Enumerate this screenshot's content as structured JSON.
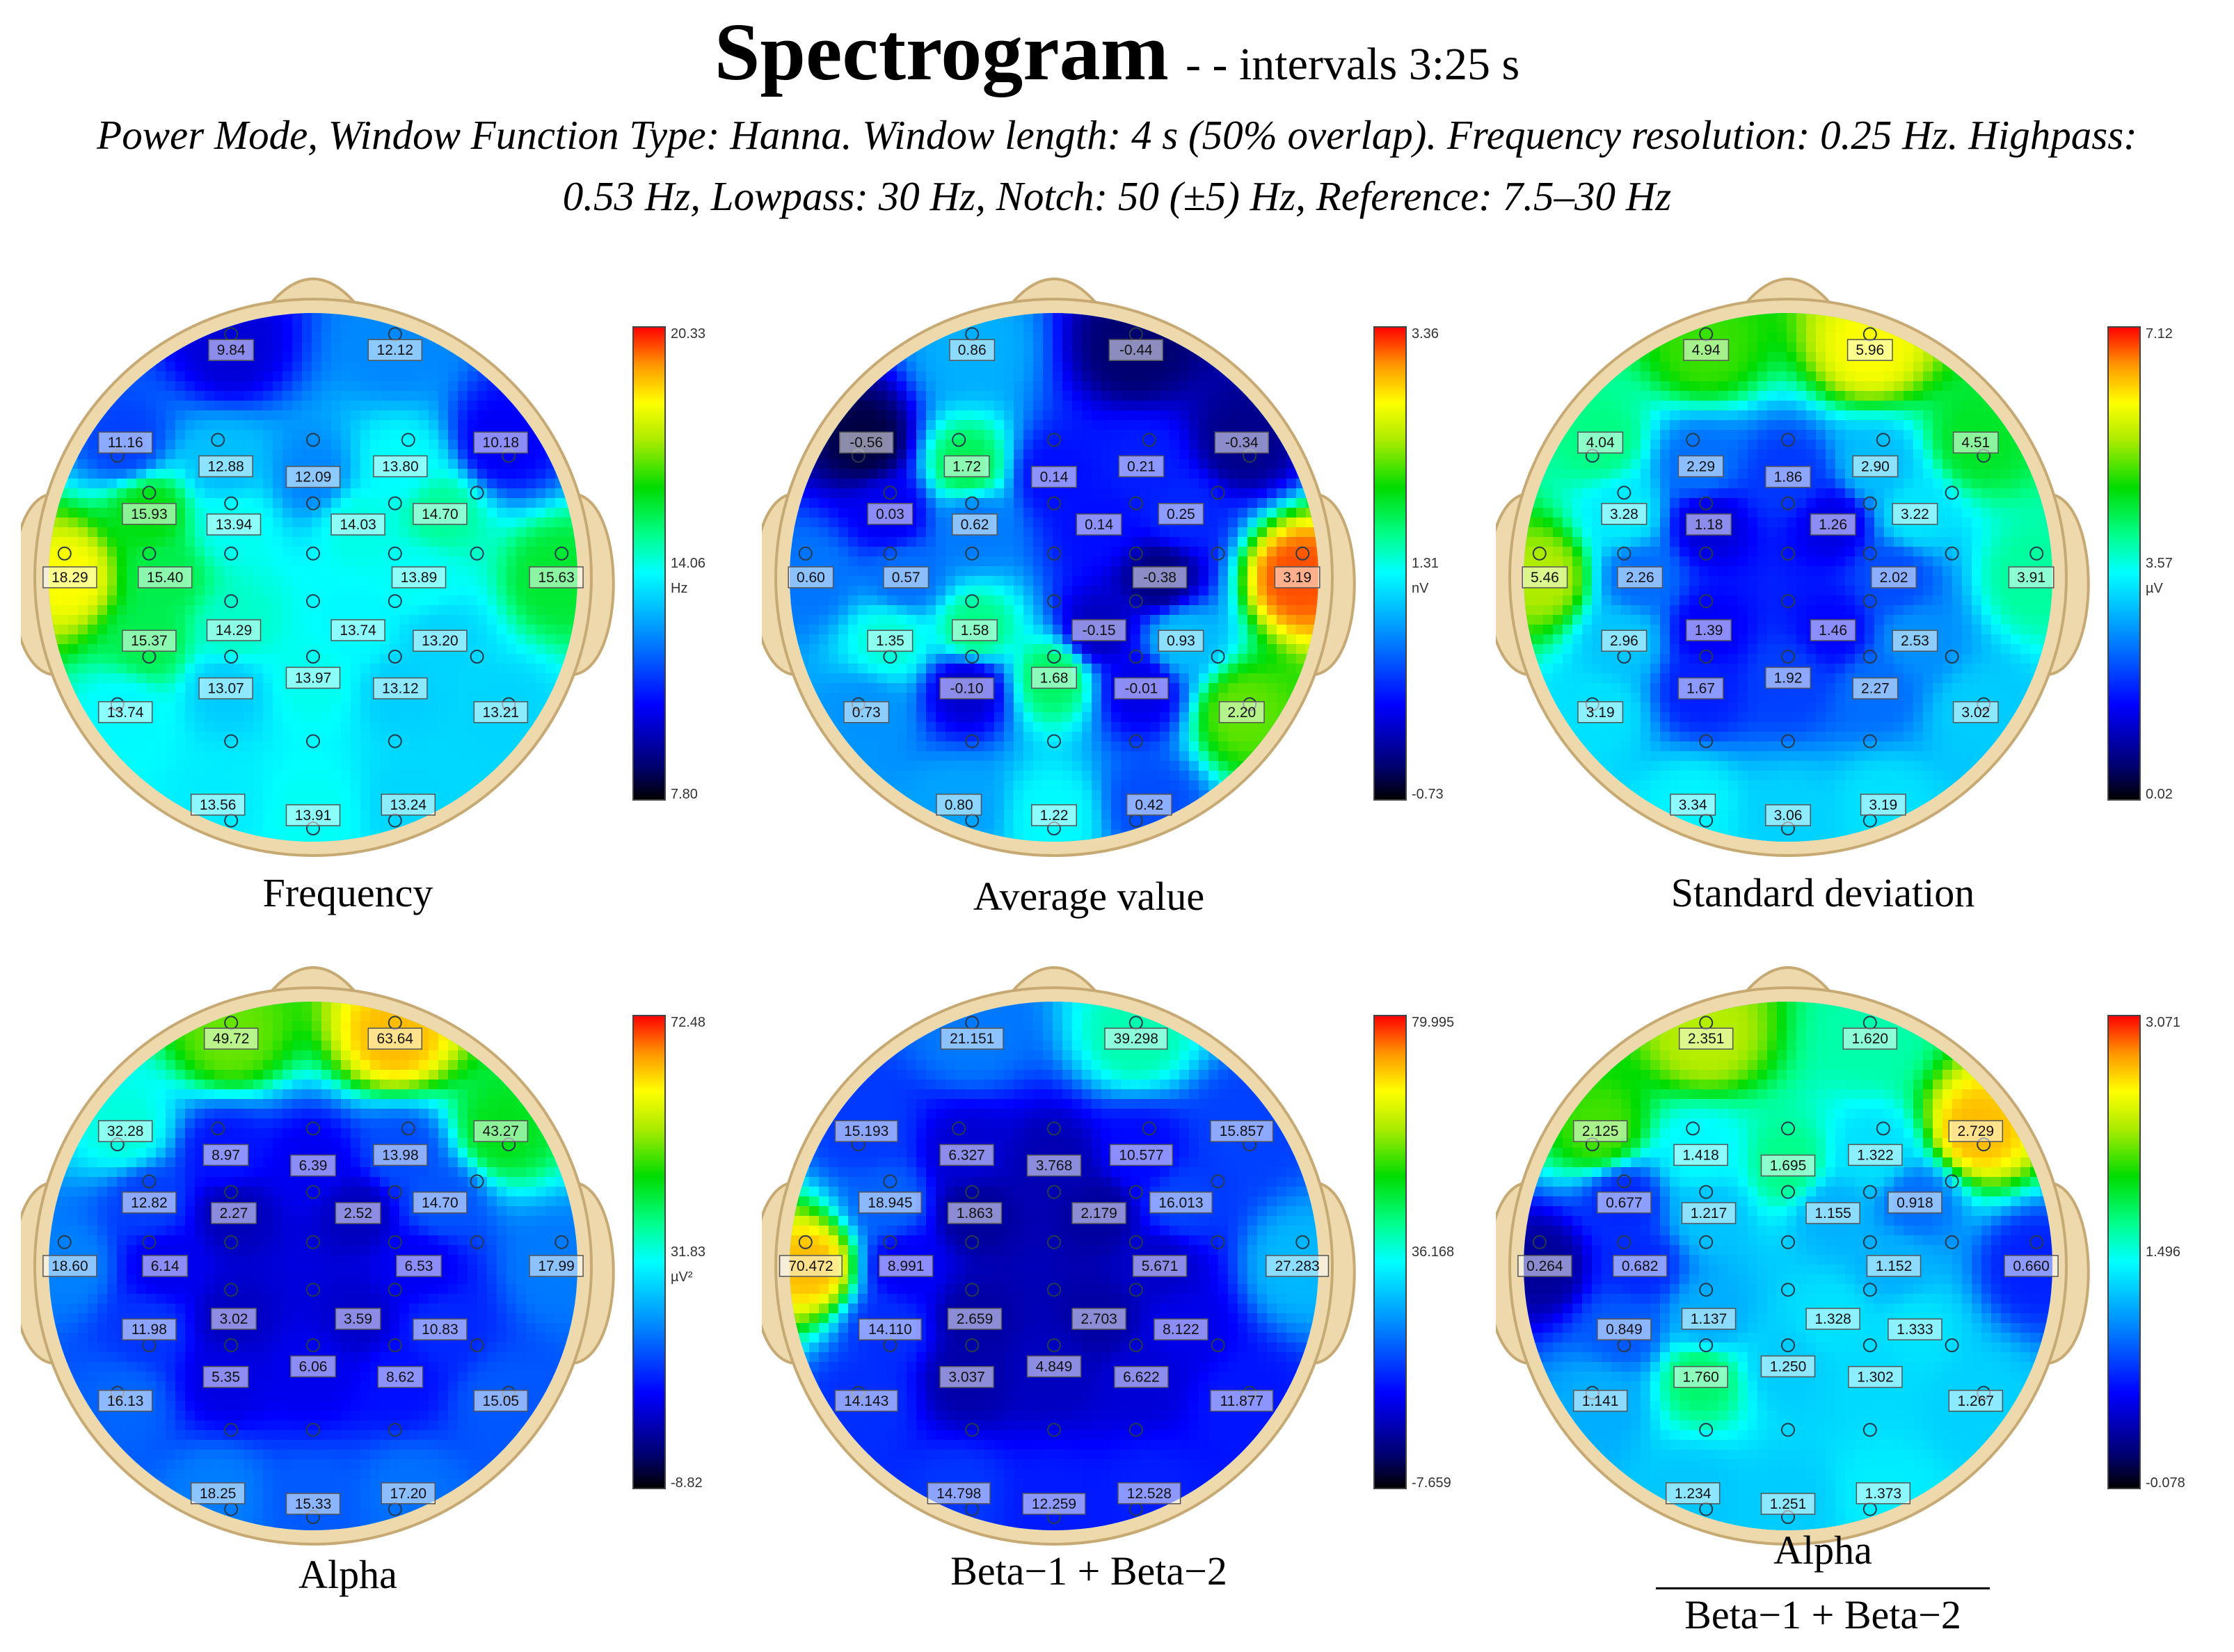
{
  "title": {
    "main": "Spectrogram",
    "suffix": "- - intervals 3:25 s",
    "subtitle_line1": "Power Mode, Window Function Type: Hanna. Window length: 4 s (50% overlap). Frequency resolution: 0.25 Hz. Highpass:",
    "subtitle_line2": "0.53 Hz, Lowpass: 30 Hz, Notch: 50 (±5) Hz, Reference: 7.5–30 Hz"
  },
  "chart_data": [
    {
      "type": "heatmap",
      "id": "frequency",
      "caption": "Frequency",
      "colorbar": {
        "max": "20.33",
        "mid": "14.06",
        "min": "7.80",
        "unit": "Hz"
      },
      "range": [
        7.8,
        20.33
      ],
      "labels": [
        "9.84",
        "12.12",
        "11.16",
        "12.88",
        "12.09",
        "13.80",
        "10.18",
        "15.93",
        "13.94",
        "14.03",
        "14.70",
        "18.29",
        "15.40",
        "13.89",
        "15.63",
        "15.37",
        "14.29",
        "13.74",
        "13.20",
        "13.07",
        "13.97",
        "13.12",
        "13.74",
        "13.21",
        "13.56",
        "13.91",
        "13.24"
      ]
    },
    {
      "type": "heatmap",
      "id": "average",
      "caption": "Average value",
      "colorbar": {
        "max": "3.36",
        "mid": "1.31",
        "min": "-0.73",
        "unit": "nV"
      },
      "range": [
        -0.73,
        3.36
      ],
      "labels": [
        "0.86",
        "-0.44",
        "-0.56",
        "1.72",
        "0.14",
        "0.21",
        "-0.34",
        "0.03",
        "0.62",
        "0.14",
        "0.25",
        "0.60",
        "0.57",
        "-0.38",
        "3.19",
        "1.35",
        "1.58",
        "-0.15",
        "0.93",
        "-0.10",
        "1.68",
        "-0.01",
        "0.73",
        "2.20",
        "0.80",
        "1.22",
        "0.42"
      ]
    },
    {
      "type": "heatmap",
      "id": "stddev",
      "caption": "Standard deviation",
      "colorbar": {
        "max": "7.12",
        "mid": "3.57",
        "min": "0.02",
        "unit": "µV"
      },
      "range": [
        0.02,
        7.12
      ],
      "labels": [
        "4.94",
        "5.96",
        "4.04",
        "2.29",
        "1.86",
        "2.90",
        "4.51",
        "3.28",
        "1.18",
        "1.26",
        "3.22",
        "5.46",
        "2.26",
        "2.02",
        "3.91",
        "2.96",
        "1.39",
        "1.46",
        "2.53",
        "1.67",
        "1.92",
        "2.27",
        "3.19",
        "3.02",
        "3.34",
        "3.06",
        "3.19"
      ]
    },
    {
      "type": "heatmap",
      "id": "alpha",
      "caption": "Alpha",
      "colorbar": {
        "max": "72.48",
        "mid": "31.83",
        "min": "-8.82",
        "unit": "µV²"
      },
      "range": [
        -8.82,
        72.48
      ],
      "labels": [
        "49.72",
        "63.64",
        "32.28",
        "8.97",
        "6.39",
        "13.98",
        "43.27",
        "12.82",
        "2.27",
        "2.52",
        "14.70",
        "18.60",
        "6.14",
        "6.53",
        "17.99",
        "11.98",
        "3.02",
        "3.59",
        "10.83",
        "5.35",
        "6.06",
        "8.62",
        "16.13",
        "15.05",
        "18.25",
        "15.33",
        "17.20"
      ]
    },
    {
      "type": "heatmap",
      "id": "beta",
      "caption": "Beta−1 + Beta−2",
      "colorbar": {
        "max": "79.995",
        "mid": "36.168",
        "min": "-7.659",
        "unit": ""
      },
      "range": [
        -7.659,
        79.995
      ],
      "labels": [
        "21.151",
        "39.298",
        "15.193",
        "6.327",
        "3.768",
        "10.577",
        "15.857",
        "18.945",
        "1.863",
        "2.179",
        "16.013",
        "70.472",
        "8.991",
        "5.671",
        "27.283",
        "14.110",
        "2.659",
        "2.703",
        "8.122",
        "3.037",
        "4.849",
        "6.622",
        "14.143",
        "11.877",
        "14.798",
        "12.259",
        "12.528"
      ]
    },
    {
      "type": "heatmap",
      "id": "ratio",
      "caption_num": "Alpha",
      "caption_den": "Beta−1 + Beta−2",
      "colorbar": {
        "max": "3.071",
        "mid": "1.496",
        "min": "-0.078",
        "unit": ""
      },
      "range": [
        -0.078,
        3.071
      ],
      "labels": [
        "2.351",
        "1.620",
        "2.125",
        "1.418",
        "1.695",
        "1.322",
        "2.729",
        "0.677",
        "1.217",
        "1.155",
        "0.918",
        "0.264",
        "0.682",
        "1.152",
        "0.660",
        "0.849",
        "1.137",
        "1.328",
        "1.333",
        "1.760",
        "1.250",
        "1.302",
        "1.141",
        "1.267",
        "1.234",
        "1.251",
        "1.373"
      ]
    }
  ]
}
